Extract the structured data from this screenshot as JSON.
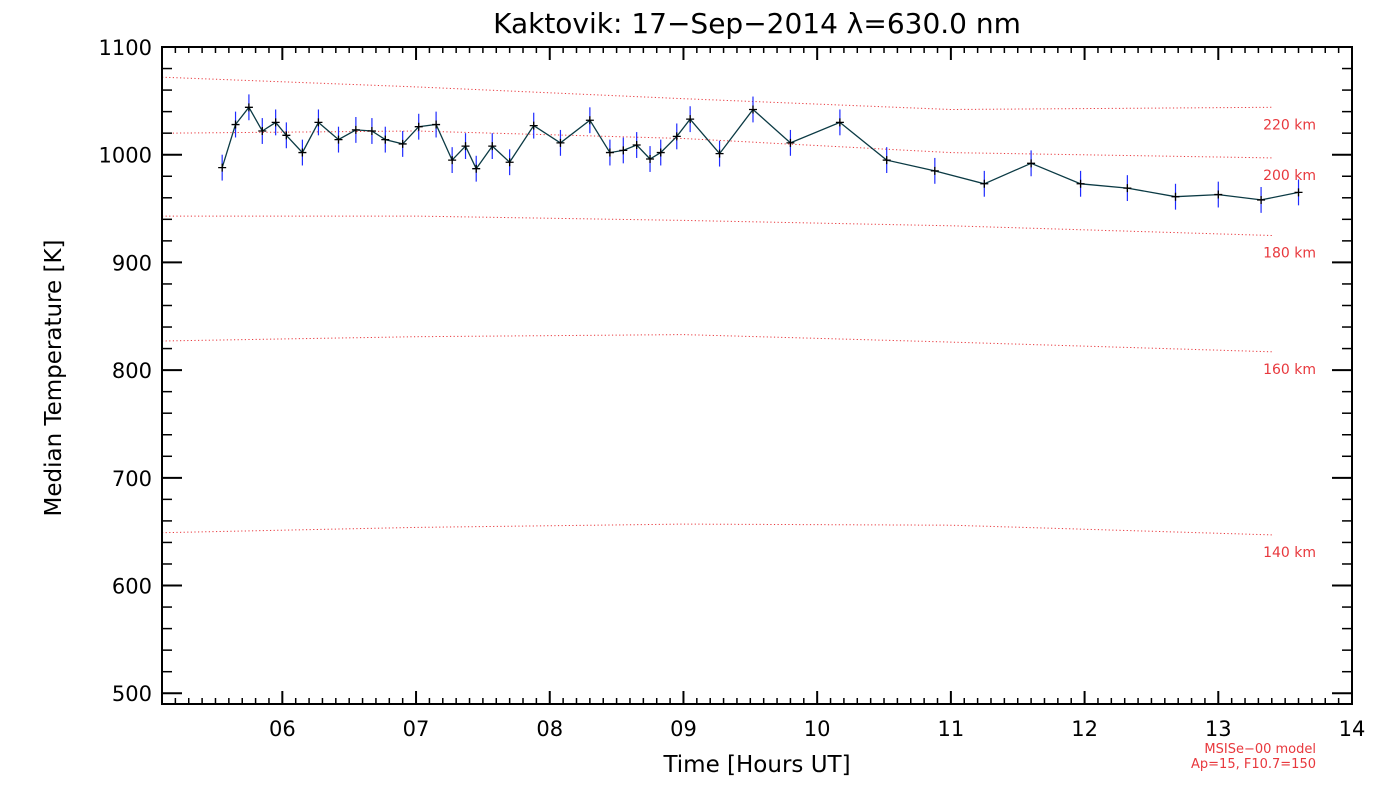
{
  "chart_data": {
    "type": "line",
    "title": "Kaktovik: 17−Sep−2014 λ=630.0 nm",
    "xlabel": "Time [Hours UT]",
    "ylabel": "Median Temperature [K]",
    "xlim": [
      5.1,
      14.0
    ],
    "ylim": [
      490,
      1100
    ],
    "xticks": [
      6,
      7,
      8,
      9,
      10,
      11,
      12,
      13,
      14
    ],
    "xtick_labels": [
      "06",
      "07",
      "08",
      "09",
      "10",
      "11",
      "12",
      "13",
      "14"
    ],
    "yticks": [
      500,
      600,
      700,
      800,
      900,
      1000,
      1100
    ],
    "ytick_labels": [
      "500",
      "600",
      "700",
      "800",
      "900",
      "1000",
      "1100"
    ],
    "colors": {
      "line": "#0b3a44",
      "error_bars": "#1f2bff",
      "model": "#e8383d",
      "axes": "#000000"
    },
    "series": [
      {
        "x": [
          5.55,
          5.65,
          5.75,
          5.85,
          5.95,
          6.03,
          6.15,
          6.27,
          6.42,
          6.55,
          6.67,
          6.77,
          6.9,
          7.02,
          7.15,
          7.27,
          7.37,
          7.45,
          7.57,
          7.7,
          7.88,
          8.08,
          8.3,
          8.45,
          8.55,
          8.65,
          8.75,
          8.83,
          8.95,
          9.05,
          9.27,
          9.52,
          9.8,
          10.17,
          10.52,
          10.88,
          11.25,
          11.6,
          11.97,
          12.32,
          12.68,
          13.0,
          13.32,
          13.6
        ],
        "y": [
          988,
          1028,
          1044,
          1022,
          1030,
          1018,
          1002,
          1030,
          1014,
          1023,
          1022,
          1014,
          1010,
          1026,
          1028,
          995,
          1008,
          987,
          1008,
          993,
          1027,
          1011,
          1032,
          1002,
          1004,
          1009,
          996,
          1002,
          1017,
          1033,
          1001,
          1042,
          1011,
          1030,
          995,
          985,
          973,
          992,
          973,
          969,
          961,
          963,
          958,
          965
        ],
        "err": [
          12,
          12,
          12,
          12,
          12,
          12,
          12,
          12,
          12,
          12,
          12,
          12,
          12,
          12,
          12,
          12,
          12,
          12,
          12,
          12,
          12,
          12,
          12,
          12,
          12,
          12,
          12,
          12,
          12,
          12,
          12,
          12,
          12,
          12,
          12,
          12,
          12,
          12,
          12,
          12,
          12,
          12,
          12,
          12
        ]
      }
    ],
    "model_lines": [
      {
        "label": "220 km",
        "x": [
          5.1,
          7.0,
          9.0,
          11.0,
          13.4
        ],
        "y": [
          1072,
          1063,
          1052,
          1042,
          1044
        ]
      },
      {
        "label": "200 km",
        "x": [
          5.1,
          7.0,
          9.0,
          11.0,
          13.4
        ],
        "y": [
          1020,
          1022,
          1015,
          1002,
          997
        ]
      },
      {
        "label": "180 km",
        "x": [
          5.1,
          7.0,
          9.0,
          11.0,
          13.4
        ],
        "y": [
          943,
          943,
          939,
          934,
          925
        ]
      },
      {
        "label": "160 km",
        "x": [
          5.1,
          7.0,
          9.0,
          11.0,
          13.4
        ],
        "y": [
          827,
          831,
          833,
          826,
          817
        ]
      },
      {
        "label": "140 km",
        "x": [
          5.1,
          7.0,
          9.0,
          11.0,
          13.4
        ],
        "y": [
          649,
          654,
          657,
          656,
          647
        ]
      }
    ],
    "model_note": [
      "MSISe−00 model",
      "Ap=15, F10.7=150"
    ]
  }
}
